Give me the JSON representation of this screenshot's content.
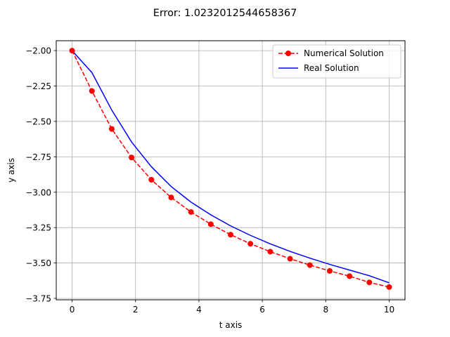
{
  "chart_data": {
    "type": "line",
    "title": "Error: 1.0232012544658367",
    "xlabel": "t axis",
    "ylabel": "y axis",
    "xlim": [
      -0.5,
      10.5
    ],
    "ylim": [
      -3.76,
      -1.93
    ],
    "x_ticks": [
      0,
      2,
      4,
      6,
      8,
      10
    ],
    "x_tick_labels": [
      "0",
      "2",
      "4",
      "6",
      "8",
      "10"
    ],
    "y_ticks": [
      -2.0,
      -2.25,
      -2.5,
      -2.75,
      -3.0,
      -3.25,
      -3.5,
      -3.75
    ],
    "y_tick_labels": [
      "−2.00",
      "−2.25",
      "−2.50",
      "−2.75",
      "−3.00",
      "−3.25",
      "−3.50",
      "−3.75"
    ],
    "grid": true,
    "legend_position": "upper right",
    "series": [
      {
        "name": "Numerical Solution",
        "color": "#ff0000",
        "style": "dashed-with-circle-markers",
        "x": [
          0,
          0.625,
          1.25,
          1.875,
          2.5,
          3.125,
          3.75,
          4.375,
          5.0,
          5.625,
          6.25,
          6.875,
          7.5,
          8.125,
          8.75,
          9.375,
          10.0
        ],
        "y": [
          -2.0,
          -2.285,
          -2.553,
          -2.755,
          -2.912,
          -3.037,
          -3.14,
          -3.226,
          -3.3,
          -3.364,
          -3.42,
          -3.47,
          -3.515,
          -3.556,
          -3.593,
          -3.637,
          -3.67
        ]
      },
      {
        "name": "Real Solution",
        "color": "#0000ff",
        "style": "solid",
        "x": [
          0,
          0.625,
          1.25,
          1.875,
          2.5,
          3.125,
          3.75,
          4.375,
          5.0,
          5.625,
          6.25,
          6.875,
          7.5,
          8.125,
          8.75,
          9.375,
          10.0
        ],
        "y": [
          -2.0,
          -2.155,
          -2.42,
          -2.645,
          -2.82,
          -2.96,
          -3.07,
          -3.16,
          -3.238,
          -3.305,
          -3.365,
          -3.418,
          -3.466,
          -3.51,
          -3.55,
          -3.59,
          -3.64
        ]
      }
    ]
  }
}
